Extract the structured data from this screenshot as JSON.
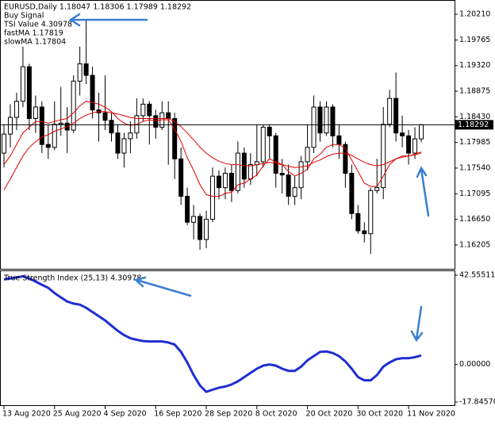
{
  "info": {
    "symbol_line": "EURUSD,Daily  1.18047 1.18306 1.17989 1.18292",
    "signal": "Buy Signal",
    "tsi_value": "TSI Value 4.30978",
    "fast_ma": "fastMA 1.17819",
    "slow_ma": "slowMA 1.17804"
  },
  "chart_data": [
    {
      "type": "candlestick",
      "categories": [
        "13 Aug 2020",
        null,
        null,
        null,
        null,
        null,
        null,
        null,
        "25 Aug 2020",
        null,
        null,
        null,
        null,
        null,
        null,
        null,
        "4 Sep 2020",
        null,
        null,
        null,
        null,
        null,
        null,
        null,
        "16 Sep 2020",
        null,
        null,
        null,
        null,
        null,
        null,
        null,
        "28 Sep 2020",
        null,
        null,
        null,
        null,
        null,
        null,
        null,
        "8 Oct 2020",
        null,
        null,
        null,
        null,
        null,
        null,
        null,
        "20 Oct 2020",
        null,
        null,
        null,
        null,
        null,
        null,
        null,
        "30 Oct 2020",
        null,
        null,
        null,
        null,
        null,
        null,
        null,
        "11 Nov 2020",
        null,
        null
      ],
      "open": [
        1.178,
        1.1813,
        1.1842,
        1.187,
        1.193,
        1.184,
        1.186,
        1.1795,
        1.179,
        1.183,
        1.1832,
        1.182,
        1.1905,
        1.1935,
        1.1915,
        1.1855,
        1.185,
        1.1837,
        1.1815,
        1.178,
        1.1805,
        1.1815,
        1.1845,
        1.1865,
        1.1845,
        1.1825,
        1.185,
        1.184,
        1.177,
        1.1705,
        1.166,
        1.167,
        1.163,
        1.1665,
        1.174,
        1.172,
        1.1745,
        1.1715,
        1.178,
        1.1735,
        1.176,
        1.1765,
        1.1825,
        1.181,
        1.1745,
        1.1742,
        1.1705,
        1.172,
        1.1765,
        1.179,
        1.186,
        1.1815,
        1.186,
        1.181,
        1.1795,
        1.1745,
        1.1675,
        1.1645,
        1.164,
        1.1715,
        1.172,
        1.183,
        1.1875,
        1.1815,
        1.181,
        1.178,
        1.18047
      ],
      "high": [
        1.183,
        1.1865,
        1.1885,
        1.1965,
        1.1935,
        1.188,
        1.187,
        1.183,
        1.187,
        1.1895,
        1.186,
        1.1915,
        1.1965,
        1.2011,
        1.193,
        1.1885,
        1.1915,
        1.185,
        1.183,
        1.1815,
        1.1835,
        1.1875,
        1.1875,
        1.187,
        1.1855,
        1.187,
        1.187,
        1.185,
        1.179,
        1.172,
        1.169,
        1.1675,
        1.168,
        1.1755,
        1.175,
        1.1755,
        1.176,
        1.18,
        1.179,
        1.178,
        1.183,
        1.183,
        1.183,
        1.1815,
        1.177,
        1.176,
        1.174,
        1.1775,
        1.183,
        1.188,
        1.187,
        1.187,
        1.1865,
        1.183,
        1.18,
        1.176,
        1.169,
        1.166,
        1.172,
        1.177,
        1.186,
        1.189,
        1.192,
        1.1845,
        1.182,
        1.1825,
        1.18306
      ],
      "low": [
        1.1755,
        1.179,
        1.182,
        1.186,
        1.182,
        1.1815,
        1.178,
        1.177,
        1.1785,
        1.181,
        1.178,
        1.1815,
        1.188,
        1.19,
        1.184,
        1.18,
        1.182,
        1.18,
        1.177,
        1.1755,
        1.178,
        1.1805,
        1.1835,
        1.1795,
        1.1805,
        1.182,
        1.176,
        1.1735,
        1.169,
        1.1655,
        1.163,
        1.1612,
        1.1615,
        1.166,
        1.17,
        1.17,
        1.1695,
        1.171,
        1.172,
        1.1725,
        1.174,
        1.1755,
        1.177,
        1.172,
        1.171,
        1.169,
        1.169,
        1.17,
        1.175,
        1.178,
        1.18,
        1.181,
        1.179,
        1.177,
        1.172,
        1.1665,
        1.164,
        1.1625,
        1.1605,
        1.171,
        1.17,
        1.1825,
        1.18,
        1.179,
        1.176,
        1.177,
        1.17989
      ],
      "close": [
        1.1813,
        1.1842,
        1.187,
        1.193,
        1.184,
        1.186,
        1.1795,
        1.179,
        1.183,
        1.1832,
        1.182,
        1.1905,
        1.1935,
        1.1915,
        1.1855,
        1.185,
        1.1837,
        1.1815,
        1.178,
        1.1805,
        1.1815,
        1.1845,
        1.1865,
        1.1845,
        1.1825,
        1.185,
        1.184,
        1.177,
        1.1705,
        1.166,
        1.167,
        1.163,
        1.1665,
        1.174,
        1.172,
        1.1745,
        1.1715,
        1.178,
        1.1735,
        1.176,
        1.1765,
        1.1825,
        1.181,
        1.1745,
        1.1742,
        1.1705,
        1.172,
        1.1765,
        1.179,
        1.186,
        1.1815,
        1.186,
        1.181,
        1.1795,
        1.1745,
        1.1675,
        1.1645,
        1.164,
        1.1715,
        1.172,
        1.183,
        1.1875,
        1.1815,
        1.181,
        1.178,
        1.18047,
        1.18292
      ],
      "series": [
        {
          "name": "fastMA",
          "color": "#e00000",
          "values": [
            1.176,
            1.1775,
            1.1795,
            1.1815,
            1.1825,
            1.1835,
            1.1835,
            1.1832,
            1.1835,
            1.1838,
            1.184,
            1.185,
            1.1862,
            1.187,
            1.1868,
            1.1865,
            1.186,
            1.1852,
            1.184,
            1.1832,
            1.1828,
            1.183,
            1.1835,
            1.1838,
            1.1836,
            1.1838,
            1.1838,
            1.1822,
            1.18,
            1.1772,
            1.175,
            1.1725,
            1.1708,
            1.1705,
            1.1705,
            1.171,
            1.1712,
            1.1725,
            1.1728,
            1.1735,
            1.1742,
            1.1758,
            1.177,
            1.1765,
            1.176,
            1.1748,
            1.174,
            1.1745,
            1.1752,
            1.177,
            1.1778,
            1.179,
            1.1795,
            1.1795,
            1.1788,
            1.1768,
            1.1748,
            1.1728,
            1.1722,
            1.1722,
            1.174,
            1.176,
            1.177,
            1.1775,
            1.1775,
            1.1778,
            1.17819
          ]
        },
        {
          "name": "slowMA",
          "color": "#e00000",
          "values": [
            1.1716,
            1.1735,
            1.1755,
            1.1775,
            1.179,
            1.18,
            1.1808,
            1.1812,
            1.1818,
            1.1822,
            1.1826,
            1.1832,
            1.184,
            1.1846,
            1.185,
            1.1852,
            1.1852,
            1.185,
            1.1848,
            1.1845,
            1.1842,
            1.184,
            1.184,
            1.184,
            1.184,
            1.184,
            1.184,
            1.1835,
            1.1826,
            1.1815,
            1.1803,
            1.179,
            1.178,
            1.1772,
            1.1766,
            1.1762,
            1.176,
            1.176,
            1.1758,
            1.1758,
            1.176,
            1.1762,
            1.1764,
            1.1762,
            1.176,
            1.1757,
            1.1755,
            1.1756,
            1.1758,
            1.1764,
            1.1768,
            1.1774,
            1.1778,
            1.178,
            1.178,
            1.1776,
            1.177,
            1.1764,
            1.176,
            1.1758,
            1.176,
            1.1765,
            1.177,
            1.1773,
            1.1775,
            1.1777,
            1.17804
          ]
        }
      ],
      "last_price": {
        "value": 1.18292,
        "label": "1.18292"
      },
      "ylim": [
        1.15791,
        1.20445
      ],
      "yticks": [
        {
          "value": 1.2021,
          "label": "1.20210"
        },
        1.19765,
        {
          "value": 1.1932,
          "label": "1.19320"
        },
        1.18875,
        {
          "value": 1.1843,
          "label": "1.18430"
        },
        1.17985,
        {
          "value": 1.1754,
          "label": "1.17540"
        },
        1.17095,
        {
          "value": 1.1665,
          "label": "1.16650"
        },
        1.16205
      ]
    },
    {
      "type": "line",
      "title": "True Strength Index (25,13) 4.30978",
      "series": [
        {
          "name": "TSI",
          "color": "#1f2fd0",
          "values": [
            40.5,
            41,
            41.5,
            42,
            41,
            39.5,
            38,
            36.5,
            34,
            32,
            30,
            29,
            28.5,
            27,
            25,
            23,
            21,
            18.5,
            16,
            14,
            12.5,
            11.8,
            11.2,
            11,
            11,
            11,
            10.5,
            9.5,
            6,
            1,
            -5,
            -10,
            -13,
            -12,
            -11,
            -10.5,
            -9.5,
            -8,
            -6,
            -4,
            -2,
            -0.5,
            0,
            -0.5,
            -2,
            -3,
            -3,
            -1,
            2,
            4,
            6,
            6.2,
            5.5,
            4,
            1.5,
            -2,
            -6,
            -7.5,
            -7.5,
            -5,
            -1,
            1,
            2.5,
            3,
            3,
            3.5,
            4.30978
          ]
        }
      ],
      "ylim": [
        -17.8457,
        42.55511
      ],
      "yticks": [
        42.55511,
        {
          "value": 0,
          "label": "0.00000"
        },
        {
          "value": -17.8457,
          "label": "-17.84570"
        }
      ]
    }
  ]
}
